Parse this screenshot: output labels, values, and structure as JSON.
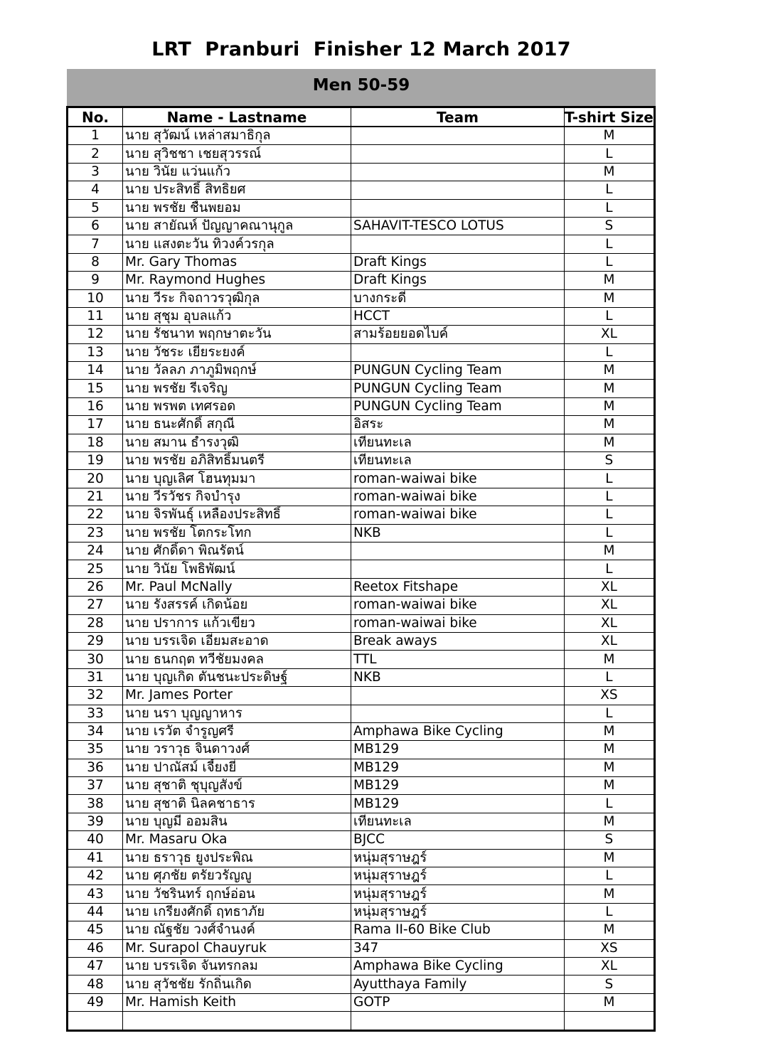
{
  "title": "LRT  Pranburi  Finisher 12 March 2017",
  "category": "Men 50-59",
  "columns": {
    "no": "No.",
    "name": "Name - Lastname",
    "team": "Team",
    "size": "T-shirt Size"
  },
  "rows": [
    {
      "no": "1",
      "name": "นาย สุวัฒน์ เหล่าสมาธิกุล",
      "team": "",
      "size": "M"
    },
    {
      "no": "2",
      "name": "นาย สุวิชชา เชยสุวรรณ์",
      "team": "",
      "size": "L"
    },
    {
      "no": "3",
      "name": "นาย วินัย แว่นแก้ว",
      "team": "",
      "size": "M"
    },
    {
      "no": "4",
      "name": "นาย ประสิทธิ์ สิทธิยศ",
      "team": "",
      "size": "L"
    },
    {
      "no": "5",
      "name": "นาย พรชัย ชื่นพยอม",
      "team": "",
      "size": "L"
    },
    {
      "no": "6",
      "name": "นาย สายัณห์ ปัญญาคณานุกูล",
      "team": "SAHAVIT-TESCO LOTUS",
      "size": "S"
    },
    {
      "no": "7",
      "name": "นาย แสงตะวัน ทิวงค์วรกุล",
      "team": "",
      "size": "L"
    },
    {
      "no": "8",
      "name": "Mr. Gary Thomas",
      "team": "Draft Kings",
      "size": "L"
    },
    {
      "no": "9",
      "name": "Mr. Raymond Hughes",
      "team": "Draft Kings",
      "size": "M"
    },
    {
      "no": "10",
      "name": "นาย วีระ กิจถาวรวุฒิกุล",
      "team": "บางกระดี่",
      "size": "M"
    },
    {
      "no": "11",
      "name": "นาย สุชุม อุบลแก้ว",
      "team": "HCCT",
      "size": "L"
    },
    {
      "no": "12",
      "name": "นาย รัชนาท พฤกษาตะวัน",
      "team": "สามร้อยยอดไบค์",
      "size": "XL"
    },
    {
      "no": "13",
      "name": "นาย วัชระ เยียระยงค์",
      "team": "",
      "size": "L"
    },
    {
      "no": "14",
      "name": "นาย วัลลภ ภาภูมิพฤกษ์",
      "team": "PUNGUN Cycling Team",
      "size": "M"
    },
    {
      "no": "15",
      "name": "นาย พรชัย รีเจริญ",
      "team": "PUNGUN Cycling Team",
      "size": "M"
    },
    {
      "no": "16",
      "name": "นาย พรพต เทศรอด",
      "team": "PUNGUN Cycling Team",
      "size": "M"
    },
    {
      "no": "17",
      "name": "นาย ธนะศักดิ์ สกุณี",
      "team": "อิสระ",
      "size": "M"
    },
    {
      "no": "18",
      "name": "นาย สมาน ธำรงวุฒิ",
      "team": "เทียนทะเล",
      "size": "M"
    },
    {
      "no": "19",
      "name": "นาย พรชัย อภิสิทธิ์มนตรี",
      "team": "เทียนทะเล",
      "size": "S"
    },
    {
      "no": "20",
      "name": "นาย บุญเลิศ โฮนทุมมา",
      "team": "roman-waiwai bike",
      "size": "L"
    },
    {
      "no": "21",
      "name": "นาย วีรวัชร กิจบำรุง",
      "team": "roman-waiwai bike",
      "size": "L"
    },
    {
      "no": "22",
      "name": "นาย จิรพันธุ์ เหลืองประสิทธิ์",
      "team": "roman-waiwai bike",
      "size": "L"
    },
    {
      "no": "23",
      "name": "นาย พรชัย โตกระโทก",
      "team": "NKB",
      "size": "L"
    },
    {
      "no": "24",
      "name": "นาย ศักดิ์ดา พิณรัตน์",
      "team": "",
      "size": "M"
    },
    {
      "no": "25",
      "name": "นาย วินัย โพธิพัฒน์",
      "team": "",
      "size": "L"
    },
    {
      "no": "26",
      "name": "Mr. Paul McNally",
      "team": "Reetox Fitshape",
      "size": "XL"
    },
    {
      "no": "27",
      "name": "นาย รังสรรค์ เกิดน้อย",
      "team": "roman-waiwai bike",
      "size": "XL"
    },
    {
      "no": "28",
      "name": "นาย ปราการ แก้วเขียว",
      "team": "roman-waiwai bike",
      "size": "XL"
    },
    {
      "no": "29",
      "name": "นาย บรรเจิด เอี่ยมสะอาด",
      "team": "Break aways",
      "size": "XL"
    },
    {
      "no": "30",
      "name": "นาย ธนกฤต ทวีชัยมงคล",
      "team": "TTL",
      "size": "M"
    },
    {
      "no": "31",
      "name": "นาย บุญเกิด ตันชนะประดิษฐ์",
      "team": "NKB",
      "size": "L"
    },
    {
      "no": "32",
      "name": "Mr. James Porter",
      "team": "",
      "size": "XS"
    },
    {
      "no": "33",
      "name": "นาย นรา บุญญาหาร",
      "team": "",
      "size": "L"
    },
    {
      "no": "34",
      "name": "นาย เรวัต จำรูญศรี",
      "team": "Amphawa Bike Cycling",
      "size": "M"
    },
    {
      "no": "35",
      "name": "นาย วราวุธ จินดาวงศ์",
      "team": "MB129",
      "size": "M"
    },
    {
      "no": "36",
      "name": "นาย ปาณัสม์ เจี้ยงยี่",
      "team": "MB129",
      "size": "M"
    },
    {
      "no": "37",
      "name": "นาย สุชาติ ชุบุญสังข์",
      "team": "MB129",
      "size": "M"
    },
    {
      "no": "38",
      "name": "นาย สุชาติ นิลคชาธาร",
      "team": "MB129",
      "size": "L"
    },
    {
      "no": "39",
      "name": "นาย บุญมี ออมสิน",
      "team": "เทียนทะเล",
      "size": "M"
    },
    {
      "no": "40",
      "name": "Mr. Masaru Oka",
      "team": "BJCC",
      "size": "S"
    },
    {
      "no": "41",
      "name": "นาย ธราวุธ ยูงประพิณ",
      "team": "หนุ่มสุราษฎร์",
      "size": "M"
    },
    {
      "no": "42",
      "name": "นาย ศุภชัย ตรัยวรัญญู",
      "team": "หนุ่มสุราษฎร์",
      "size": "L"
    },
    {
      "no": "43",
      "name": "นาย วัชรินทร์ ฤกษ์อ่อน",
      "team": "หนุ่มสุราษฎร์",
      "size": "M"
    },
    {
      "no": "44",
      "name": "นาย เกรียงศักดิ์ ฤทธาภัย",
      "team": "หนุ่มสุราษฎร์",
      "size": "L"
    },
    {
      "no": "45",
      "name": "นาย ณัฐชัย วงศ์จำนงค์",
      "team": "Rama II-60 Bike Club",
      "size": "M"
    },
    {
      "no": "46",
      "name": "Mr. Surapol Chauyruk",
      "team": "347",
      "size": "XS"
    },
    {
      "no": "47",
      "name": "นาย บรรเจิด จันทรกลม",
      "team": "Amphawa Bike Cycling",
      "size": "XL"
    },
    {
      "no": "48",
      "name": "นาย สุวัชชัย รักถิ่นเกิด",
      "team": "Ayutthaya Family",
      "size": "S"
    },
    {
      "no": "49",
      "name": "Mr. Hamish Keith",
      "team": "GOTP",
      "size": "M"
    },
    {
      "no": "",
      "name": "",
      "team": "",
      "size": ""
    }
  ]
}
